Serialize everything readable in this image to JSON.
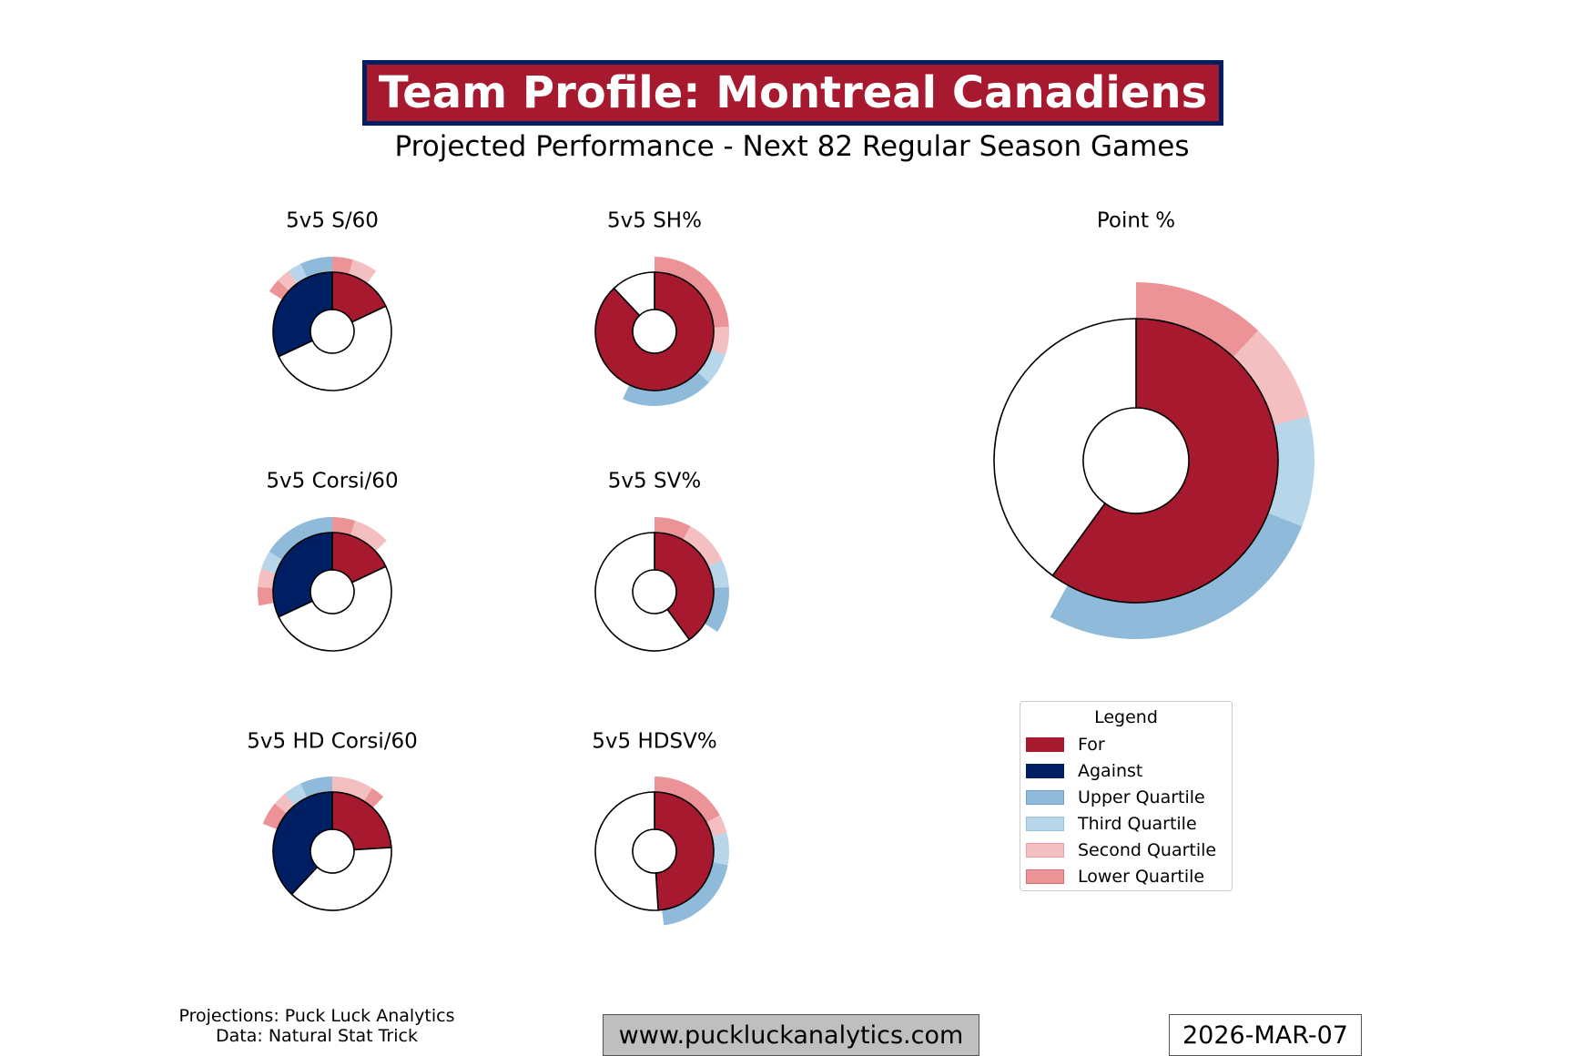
{
  "header": {
    "title": "Team Profile: Montreal Canadiens",
    "subtitle": "Projected Performance - Next 82 Regular Season Games"
  },
  "colors": {
    "for": "#a6192e",
    "against": "#001e62",
    "upper_quartile": "#8fbad9",
    "third_quartile": "#b8d6ea",
    "second_quartile": "#f3bfc0",
    "lower_quartile": "#eb9396"
  },
  "chart_data": [
    {
      "type": "pie",
      "title": "5v5 S/60",
      "for_share": 0.18,
      "against_share": 0.32,
      "for_band": [
        [
          "lower_quartile",
          0.045
        ],
        [
          "second_quartile",
          0.055
        ]
      ],
      "against_band": [
        [
          "upper_quartile",
          0.07
        ],
        [
          "third_quartile",
          0.03
        ],
        [
          "second_quartile",
          0.03
        ],
        [
          "lower_quartile",
          0.03
        ]
      ]
    },
    {
      "type": "pie",
      "title": "5v5 SH%",
      "for_share": 0.88,
      "for_band": [
        [
          "lower_quartile",
          0.24
        ],
        [
          "second_quartile",
          0.06
        ],
        [
          "third_quartile",
          0.07
        ],
        [
          "upper_quartile",
          0.2
        ]
      ]
    },
    {
      "type": "pie",
      "title": "5v5 Corsi/60",
      "for_share": 0.18,
      "against_share": 0.32,
      "for_band": [
        [
          "lower_quartile",
          0.05
        ],
        [
          "second_quartile",
          0.08
        ]
      ],
      "against_band": [
        [
          "upper_quartile",
          0.16
        ],
        [
          "third_quartile",
          0.04
        ],
        [
          "second_quartile",
          0.04
        ],
        [
          "lower_quartile",
          0.04
        ]
      ]
    },
    {
      "type": "pie",
      "title": "5v5 SV%",
      "for_share": 0.4,
      "for_band": [
        [
          "lower_quartile",
          0.08
        ],
        [
          "second_quartile",
          0.1
        ],
        [
          "third_quartile",
          0.06
        ],
        [
          "upper_quartile",
          0.1
        ]
      ]
    },
    {
      "type": "pie",
      "title": "5v5 HD Corsi/60",
      "for_share": 0.24,
      "against_share": 0.38,
      "for_band": [
        [
          "second_quartile",
          0.09
        ],
        [
          "lower_quartile",
          0.03
        ]
      ],
      "against_band": [
        [
          "upper_quartile",
          0.07
        ],
        [
          "third_quartile",
          0.04
        ],
        [
          "second_quartile",
          0.03
        ],
        [
          "lower_quartile",
          0.05
        ]
      ]
    },
    {
      "type": "pie",
      "title": "5v5 HDSV%",
      "for_share": 0.49,
      "for_band": [
        [
          "lower_quartile",
          0.17
        ],
        [
          "second_quartile",
          0.04
        ],
        [
          "third_quartile",
          0.07
        ],
        [
          "upper_quartile",
          0.2
        ]
      ]
    },
    {
      "type": "pie",
      "title": "Point %",
      "for_share": 0.6,
      "for_band": [
        [
          "lower_quartile",
          0.12
        ],
        [
          "second_quartile",
          0.09
        ],
        [
          "third_quartile",
          0.1
        ],
        [
          "upper_quartile",
          0.27
        ]
      ]
    }
  ],
  "legend": {
    "title": "Legend",
    "items": [
      {
        "label": "For",
        "color": "#a6192e",
        "border": "#a6192e"
      },
      {
        "label": "Against",
        "color": "#001e62",
        "border": "#001e62"
      },
      {
        "label": "Upper Quartile",
        "color": "#8fbad9",
        "border": "#6a9dc9"
      },
      {
        "label": "Third Quartile",
        "color": "#b8d6ea",
        "border": "#98bfdb"
      },
      {
        "label": "Second Quartile",
        "color": "#f3bfc0",
        "border": "#e9a0a2"
      },
      {
        "label": "Lower Quartile",
        "color": "#eb9396",
        "border": "#dc6a6e"
      }
    ]
  },
  "footer": {
    "credits_line1": "Projections: Puck Luck Analytics",
    "credits_line2": "Data: Natural Stat Trick",
    "website": "www.puckluckanalytics.com",
    "date": "2026-MAR-07"
  }
}
